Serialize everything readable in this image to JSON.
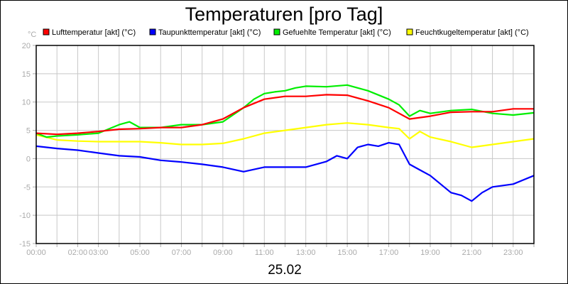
{
  "chart_data": {
    "type": "line",
    "title": "Temperaturen [pro Tag]",
    "xlabel": "25.02",
    "ylabel": "°C",
    "ylim": [
      -15,
      20
    ],
    "yticks": [
      "20",
      "15",
      "10",
      "5",
      "0",
      "-5",
      "-10",
      "-15"
    ],
    "xlim_hours": [
      0,
      24
    ],
    "xtick_labels": [
      {
        "h": 0,
        "label": "00:00"
      },
      {
        "h": 2,
        "label": "02:00"
      },
      {
        "h": 3,
        "label": "03:00"
      },
      {
        "h": 5,
        "label": "05:00"
      },
      {
        "h": 7,
        "label": "07:00"
      },
      {
        "h": 9,
        "label": "09:00"
      },
      {
        "h": 11,
        "label": "11:00"
      },
      {
        "h": 13,
        "label": "13:00"
      },
      {
        "h": 15,
        "label": "15:00"
      },
      {
        "h": 17,
        "label": "17:00"
      },
      {
        "h": 19,
        "label": "19:00"
      },
      {
        "h": 21,
        "label": "21:00"
      },
      {
        "h": 23,
        "label": "23:00"
      }
    ],
    "grid": true,
    "legend_position": "top",
    "series": [
      {
        "name": "Lufttemperatur [akt] (°C)",
        "color": "#ff0000",
        "x": [
          0,
          1,
          2,
          3,
          4,
          5,
          6,
          7,
          8,
          9,
          10,
          11,
          12,
          13,
          14,
          15,
          16,
          17,
          18,
          19,
          20,
          21,
          22,
          23,
          24
        ],
        "y": [
          4.5,
          4.3,
          4.5,
          4.8,
          5.2,
          5.3,
          5.5,
          5.5,
          6.0,
          7.0,
          9.0,
          10.5,
          11,
          11,
          11.3,
          11.2,
          10.2,
          9,
          7.0,
          7.5,
          8.2,
          8.3,
          8.3,
          8.8,
          8.8
        ]
      },
      {
        "name": "Taupunkttemperatur [akt] (°C)",
        "color": "#0000ff",
        "x": [
          0,
          1,
          2,
          3,
          4,
          5,
          6,
          7,
          8,
          9,
          10,
          11,
          12,
          13,
          14,
          14.5,
          15,
          15.5,
          16,
          16.5,
          17,
          17.5,
          18,
          18.5,
          19,
          19.5,
          20,
          20.5,
          21,
          21.5,
          22,
          23,
          24
        ],
        "y": [
          2.2,
          1.8,
          1.5,
          1.0,
          0.5,
          0.3,
          -0.3,
          -0.6,
          -1.0,
          -1.5,
          -2.3,
          -1.5,
          -1.5,
          -1.5,
          -0.5,
          0.5,
          0,
          2,
          2.5,
          2.2,
          2.8,
          2.5,
          -1.0,
          -2.0,
          -3,
          -4.5,
          -6.0,
          -6.5,
          -7.5,
          -6,
          -5,
          -4.5,
          -3
        ]
      },
      {
        "name": "Gefuehlte Temperatur [akt] (°C)",
        "color": "#00ee00",
        "x": [
          0,
          0.5,
          1,
          2,
          3,
          4,
          4.5,
          5,
          6,
          7,
          8,
          9,
          10,
          10.5,
          11,
          11.5,
          12,
          12.5,
          13,
          14,
          15,
          15.5,
          16,
          17,
          17.5,
          18,
          18.5,
          19,
          20,
          21,
          22,
          23,
          24
        ],
        "y": [
          4.5,
          3.8,
          4,
          4.2,
          4.5,
          6,
          6.5,
          5.5,
          5.5,
          6.0,
          6.0,
          6.5,
          9,
          10.5,
          11.5,
          11.8,
          12,
          12.5,
          12.8,
          12.7,
          13,
          12.5,
          12,
          10.5,
          9.5,
          7.5,
          8.5,
          8,
          8.5,
          8.7,
          8,
          7.7,
          8.1
        ]
      },
      {
        "name": "Feuchtkugeltemperatur [akt] (°C)",
        "color": "#ffff00",
        "x": [
          0,
          1,
          2,
          3,
          4,
          5,
          6,
          7,
          8,
          9,
          10,
          11,
          12,
          13,
          14,
          15,
          16,
          17,
          17.5,
          18,
          18.5,
          19,
          20,
          21,
          22,
          23,
          24
        ],
        "y": [
          4.2,
          3.3,
          3.1,
          3.0,
          3.0,
          3.0,
          2.8,
          2.5,
          2.5,
          2.7,
          3.5,
          4.5,
          5.0,
          5.5,
          6,
          6.3,
          6,
          5.5,
          5.3,
          3.5,
          4.8,
          3.8,
          3,
          2,
          2.5,
          3,
          3.5
        ]
      }
    ]
  }
}
